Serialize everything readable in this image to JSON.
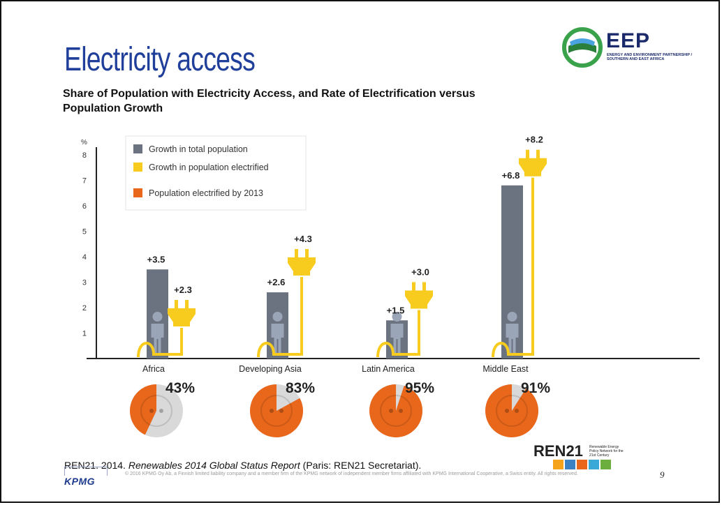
{
  "slide": {
    "title": "Electricity access",
    "chart_title": "Share of Population with Electricity Access, and Rate of Electrification versus Population Growth",
    "citation_prefix": "REN21. 2014. ",
    "citation_italic": "Renewables 2014 Global Status Report",
    "citation_suffix": " (Paris: REN21 Secretariat).",
    "footer_note": "© 2016 KPMG Oy Ab, a Finnish limited liability company and a member firm of the KPMG network of independent member firms affiliated with KPMG International Cooperative, a Swiss entity. All rights reserved.",
    "page_number": "9",
    "kpmg_logo": "KPMG",
    "eep_logo": {
      "name": "EEP",
      "subtitle": "ENERGY AND ENVIRONMENT PARTNERSHIP / SOUTHERN AND EAST AFRICA"
    },
    "ren21_logo": {
      "name": "REN21",
      "subtitle": "Renewable Energy Policy Network for the 21st Century"
    }
  },
  "colors": {
    "title_blue": "#1f3f9a",
    "population_gray": "#6b7280",
    "electrified_yellow": "#f7cc1e",
    "electrified_orange": "#e8671b",
    "pie_remainder": "#d9d9d9"
  },
  "chart_data": {
    "type": "bar",
    "ylabel": "%",
    "ylim": [
      0,
      8
    ],
    "yticks": [
      "1",
      "2",
      "3",
      "4",
      "5",
      "6",
      "7",
      "8"
    ],
    "grid": false,
    "legend_position": "top-left",
    "categories": [
      "Africa",
      "Developing Asia",
      "Latin America",
      "Middle East"
    ],
    "series": [
      {
        "name": "Growth in total population",
        "values": [
          3.5,
          2.6,
          1.5,
          6.8
        ],
        "labels": [
          "+3.5",
          "+2.6",
          "+1.5",
          "+6.8"
        ],
        "icon": "person-icon"
      },
      {
        "name": "Growth in population electrified",
        "values": [
          2.3,
          4.3,
          3.0,
          8.2
        ],
        "labels": [
          "+2.3",
          "+4.3",
          "+3.0",
          "+8.2"
        ],
        "icon": "plug-icon"
      }
    ],
    "electrified_by_2013": {
      "name": "Population electrified by 2013",
      "values": [
        43,
        83,
        95,
        91
      ],
      "labels": [
        "43%",
        "83%",
        "95%",
        "91%"
      ],
      "icon": "socket-icon"
    }
  }
}
